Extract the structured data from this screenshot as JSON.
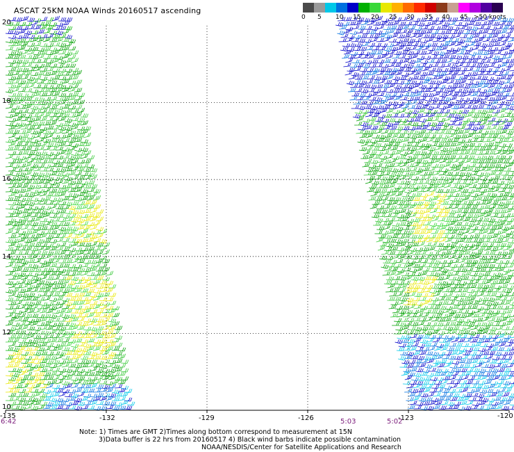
{
  "title": "ASCAT 25KM NOAA Winds 20160517 ascending",
  "colorbar": {
    "colors": [
      "#4a4a4a",
      "#9a9a9a",
      "#00c8e8",
      "#0070e0",
      "#0000c8",
      "#00b000",
      "#38d838",
      "#e8e800",
      "#ffb000",
      "#ff6a00",
      "#ff2a00",
      "#d00000",
      "#8c3a1a",
      "#c8a090",
      "#ff00ff",
      "#b000e0",
      "#5000a0",
      "#2a0050"
    ],
    "labels": [
      "0",
      "5",
      "10",
      "15",
      "20",
      "25",
      "30",
      "35",
      "40",
      "45",
      ">50 knots"
    ]
  },
  "map": {
    "lon_range": [
      -135,
      -120
    ],
    "lat_range": [
      10,
      20
    ],
    "lon_ticks": [
      "-135",
      "-132",
      "-129",
      "-126",
      "-123",
      "-120"
    ],
    "lat_ticks": [
      "20",
      "18",
      "16",
      "14",
      "12",
      "10"
    ]
  },
  "passes": {
    "left_time": "6:42",
    "right_times": [
      "5:03",
      "5:02"
    ]
  },
  "swaths": {
    "left_lon_edge": [
      -135,
      -132
    ],
    "right_lon_edge": [
      -126.5,
      -120
    ]
  },
  "notes": [
    "Note: 1) Times are GMT 2)Times along bottom correspond to measurement at 15N",
    "3)Data buffer is 22 hrs from 20160517 4) Black wind barbs indicate possible contamination"
  ],
  "credit": "NOAA/NESDIS/Center for Satellite Applications and Research"
}
